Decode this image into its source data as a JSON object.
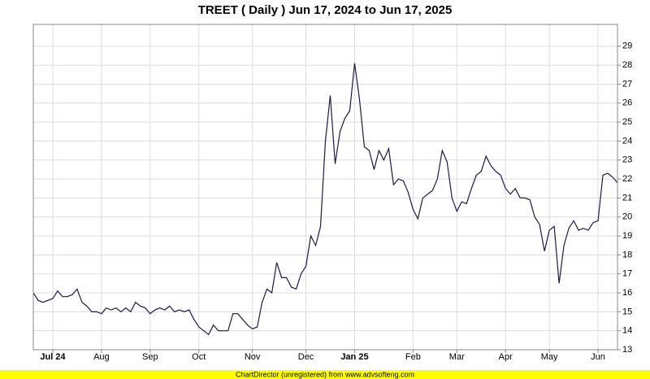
{
  "chart_data": {
    "type": "line",
    "title": "TREET ( Daily ) Jun 17, 2024 to Jun 17, 2025",
    "footer": "ChartDirector (unregistered) from www.advsofteng.com",
    "categories": [
      null,
      null,
      null,
      null,
      "Jul 24",
      null,
      null,
      null,
      null,
      null,
      null,
      null,
      null,
      null,
      "Aug",
      null,
      null,
      null,
      null,
      null,
      null,
      null,
      null,
      null,
      "Sep",
      null,
      null,
      null,
      null,
      null,
      null,
      null,
      null,
      null,
      "Oct",
      null,
      null,
      null,
      null,
      null,
      null,
      null,
      null,
      null,
      null,
      "Nov",
      null,
      null,
      null,
      null,
      null,
      null,
      null,
      null,
      null,
      null,
      "Dec",
      null,
      null,
      null,
      null,
      null,
      null,
      null,
      null,
      null,
      "Jan 25",
      null,
      null,
      null,
      null,
      null,
      null,
      null,
      null,
      null,
      null,
      null,
      "Feb",
      null,
      null,
      null,
      null,
      null,
      null,
      null,
      null,
      "Mar",
      null,
      null,
      null,
      null,
      null,
      null,
      null,
      null,
      null,
      "Apr",
      null,
      null,
      null,
      null,
      null,
      null,
      null,
      null,
      "May",
      null,
      null,
      null,
      null,
      null,
      null,
      null,
      null,
      null,
      "Jun",
      null,
      null,
      null,
      null
    ],
    "series": [
      {
        "name": "TREET",
        "color": "#1a1a4e",
        "values": [
          16.0,
          15.6,
          15.5,
          15.6,
          15.7,
          16.1,
          15.8,
          15.8,
          15.9,
          16.2,
          15.5,
          15.3,
          15.0,
          15.0,
          14.9,
          15.2,
          15.1,
          15.2,
          15.0,
          15.2,
          15.0,
          15.5,
          15.3,
          15.2,
          14.9,
          15.1,
          15.2,
          15.1,
          15.3,
          15.0,
          15.1,
          15.0,
          15.1,
          14.6,
          14.2,
          14.0,
          13.8,
          14.3,
          14.0,
          14.0,
          14.0,
          14.9,
          14.9,
          14.6,
          14.3,
          14.1,
          14.2,
          15.5,
          16.2,
          16.0,
          17.6,
          16.8,
          16.8,
          16.3,
          16.2,
          17.0,
          17.4,
          19.0,
          18.5,
          19.5,
          24.0,
          26.4,
          22.8,
          24.5,
          25.2,
          25.6,
          28.1,
          26.2,
          23.7,
          23.5,
          22.5,
          23.5,
          23.0,
          23.6,
          21.7,
          22.0,
          21.9,
          21.3,
          20.4,
          19.9,
          21.0,
          21.2,
          21.4,
          22.0,
          23.5,
          22.9,
          21.0,
          20.3,
          20.8,
          20.7,
          21.5,
          22.2,
          22.4,
          23.2,
          22.7,
          22.4,
          22.2,
          21.5,
          21.2,
          21.5,
          21.0,
          21.0,
          20.9,
          20.0,
          19.6,
          18.2,
          19.3,
          19.5,
          16.5,
          18.5,
          19.4,
          19.8,
          19.3,
          19.4,
          19.3,
          19.7,
          19.8,
          22.2,
          22.3,
          22.1,
          21.8
        ]
      }
    ],
    "ylim": [
      13,
      30.15
    ],
    "yticks": [
      13,
      14,
      15,
      16,
      17,
      18,
      19,
      20,
      21,
      22,
      23,
      24,
      25,
      26,
      27,
      28,
      29
    ],
    "grid": true
  }
}
